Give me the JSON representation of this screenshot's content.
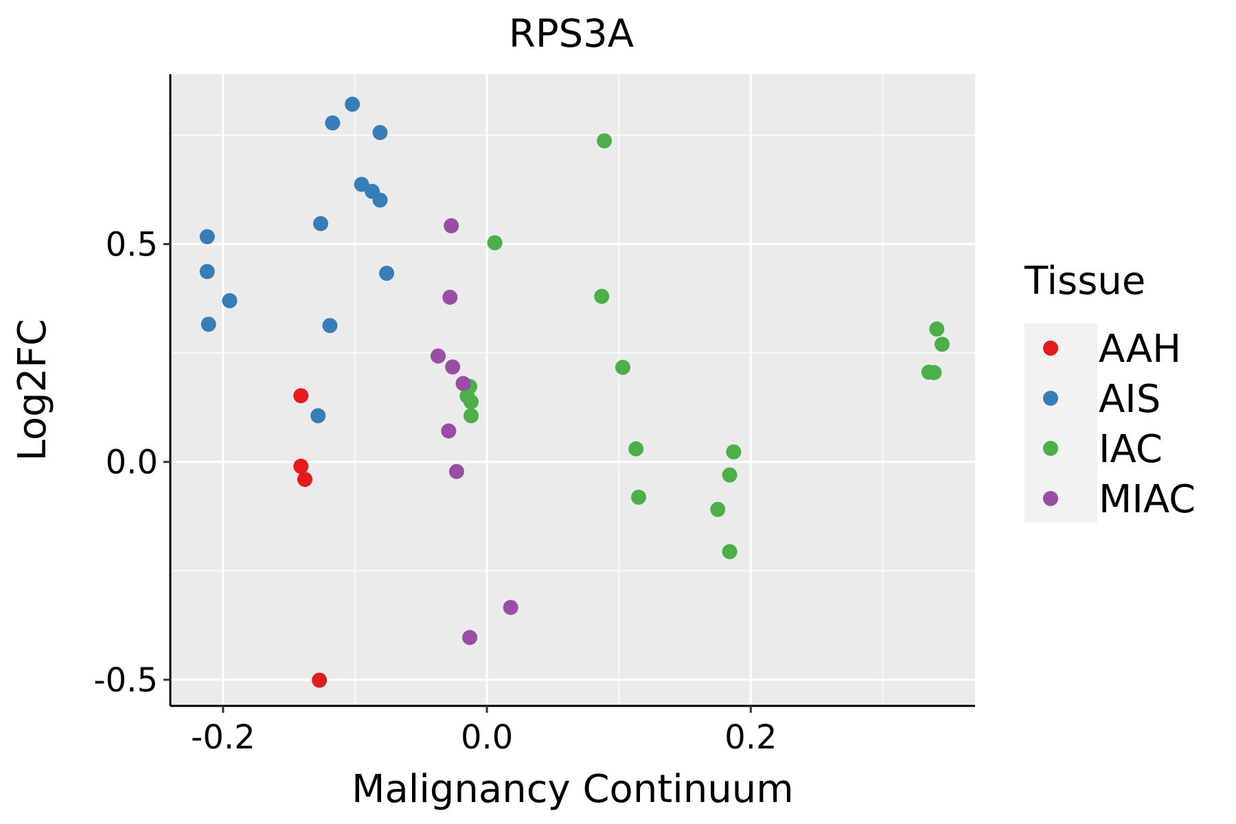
{
  "chart_data": {
    "type": "scatter",
    "title": "RPS3A",
    "xlabel": "Malignancy Continuum",
    "ylabel": "Log2FC",
    "xlim": [
      -0.24,
      0.37
    ],
    "ylim": [
      -0.56,
      0.89
    ],
    "x_ticks": [
      -0.2,
      0.0,
      0.2
    ],
    "x_tick_labels": [
      "-0.2",
      "0.0",
      "0.2"
    ],
    "y_ticks": [
      -0.5,
      0.0,
      0.5
    ],
    "y_tick_labels": [
      "-0.5",
      "0.0",
      "0.5"
    ],
    "x_minor": [
      -0.1,
      0.1,
      0.3
    ],
    "y_minor": [
      -0.25,
      0.25,
      0.75
    ],
    "grid": true,
    "legend": {
      "title": "Tissue",
      "position": "right",
      "entries": [
        "AAH",
        "AIS",
        "IAC",
        "MIAC"
      ]
    },
    "series": [
      {
        "name": "AAH",
        "color": "#E41A1C",
        "points": [
          [
            -0.141,
            0.152
          ],
          [
            -0.141,
            -0.01
          ],
          [
            -0.138,
            -0.04
          ],
          [
            -0.127,
            -0.501
          ]
        ]
      },
      {
        "name": "AIS",
        "color": "#377EB8",
        "points": [
          [
            -0.102,
            0.821
          ],
          [
            -0.117,
            0.778
          ],
          [
            -0.081,
            0.756
          ],
          [
            -0.095,
            0.637
          ],
          [
            -0.087,
            0.621
          ],
          [
            -0.081,
            0.601
          ],
          [
            -0.126,
            0.547
          ],
          [
            -0.212,
            0.517
          ],
          [
            -0.212,
            0.437
          ],
          [
            -0.076,
            0.433
          ],
          [
            -0.195,
            0.37
          ],
          [
            -0.211,
            0.316
          ],
          [
            -0.119,
            0.313
          ],
          [
            -0.128,
            0.106
          ]
        ]
      },
      {
        "name": "IAC",
        "color": "#4DAF4A",
        "points": [
          [
            0.089,
            0.737
          ],
          [
            0.006,
            0.503
          ],
          [
            0.087,
            0.38
          ],
          [
            0.341,
            0.305
          ],
          [
            0.345,
            0.27
          ],
          [
            0.103,
            0.217
          ],
          [
            0.335,
            0.206
          ],
          [
            0.339,
            0.205
          ],
          [
            -0.013,
            0.173
          ],
          [
            -0.015,
            0.151
          ],
          [
            -0.012,
            0.138
          ],
          [
            -0.012,
            0.106
          ],
          [
            0.113,
            0.03
          ],
          [
            0.187,
            0.023
          ],
          [
            0.184,
            -0.03
          ],
          [
            0.115,
            -0.081
          ],
          [
            0.175,
            -0.109
          ],
          [
            0.184,
            -0.206
          ]
        ]
      },
      {
        "name": "MIAC",
        "color": "#984EA3",
        "points": [
          [
            -0.027,
            0.542
          ],
          [
            -0.028,
            0.378
          ],
          [
            -0.037,
            0.243
          ],
          [
            -0.026,
            0.218
          ],
          [
            -0.018,
            0.18
          ],
          [
            -0.029,
            0.071
          ],
          [
            -0.023,
            -0.022
          ],
          [
            0.018,
            -0.334
          ],
          [
            -0.013,
            -0.403
          ]
        ]
      }
    ]
  }
}
